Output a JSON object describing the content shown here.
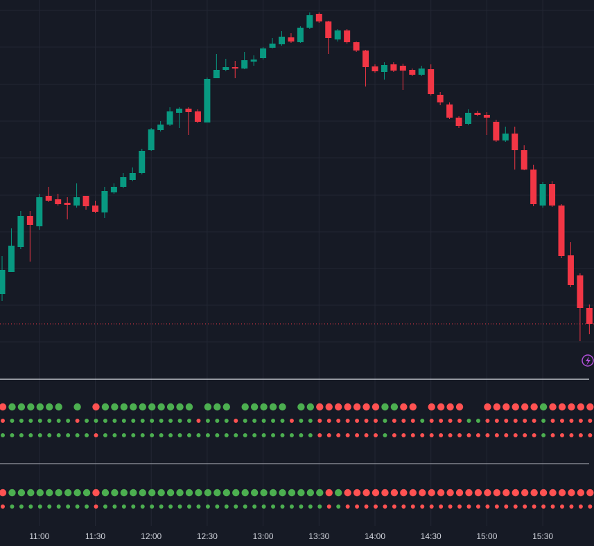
{
  "chart_data": [
    {
      "type": "candlestick",
      "categories": [
        null,
        null,
        null,
        null,
        "11:00",
        null,
        null,
        null,
        null,
        null,
        "11:30",
        null,
        null,
        null,
        null,
        null,
        "12:00",
        null,
        null,
        null,
        null,
        null,
        "12:30",
        null,
        null,
        null,
        null,
        null,
        "13:00",
        null,
        null,
        null,
        null,
        null,
        "13:30",
        null,
        null,
        null,
        null,
        null,
        "14:00",
        null,
        null,
        null,
        null,
        null,
        "14:30",
        null,
        null,
        null,
        null,
        null,
        "15:00",
        null,
        null,
        null,
        null,
        null,
        "15:30",
        null,
        null,
        null,
        null,
        null
      ],
      "open": [
        115,
        147,
        183,
        228,
        213,
        257,
        252,
        247,
        243,
        257,
        243,
        233,
        262,
        270,
        280,
        290,
        323,
        352,
        360,
        377,
        383,
        379,
        363,
        427,
        439,
        443,
        441,
        451,
        456,
        471,
        476,
        486,
        479,
        500,
        520,
        509,
        483,
        496,
        479,
        467,
        444,
        436,
        447,
        445,
        439,
        432,
        440,
        403,
        389,
        370,
        361,
        377,
        374,
        364,
        337,
        347,
        323,
        295,
        243,
        274,
        243,
        171,
        142,
        95
      ],
      "high": [
        170,
        210,
        235,
        235,
        260,
        270,
        260,
        255,
        275,
        257,
        250,
        270,
        275,
        290,
        298,
        325,
        355,
        365,
        385,
        385,
        385,
        382,
        428,
        462,
        455,
        452,
        465,
        460,
        472,
        485,
        495,
        492,
        502,
        522,
        522,
        510,
        498,
        498,
        480,
        468,
        447,
        450,
        450,
        448,
        441,
        445,
        447,
        407,
        392,
        372,
        382,
        380,
        378,
        367,
        357,
        357,
        330,
        302,
        277,
        278,
        245,
        190,
        145,
        100
      ],
      "low": [
        105,
        147,
        180,
        162,
        208,
        248,
        243,
        223,
        240,
        237,
        232,
        225,
        260,
        268,
        278,
        288,
        322,
        350,
        358,
        355,
        345,
        362,
        363,
        427,
        437,
        427,
        440,
        445,
        454,
        470,
        474,
        478,
        478,
        498,
        507,
        462,
        480,
        477,
        465,
        415,
        435,
        425,
        436,
        410,
        430,
        430,
        402,
        388,
        368,
        355,
        359,
        372,
        345,
        335,
        335,
        295,
        294,
        242,
        240,
        241,
        167,
        125,
        47,
        57
      ],
      "close": [
        150,
        185,
        228,
        215,
        255,
        250,
        245,
        244,
        255,
        242,
        234,
        264,
        270,
        284,
        290,
        322,
        353,
        360,
        379,
        383,
        378,
        364,
        426,
        439,
        443,
        441,
        453,
        454,
        470,
        477,
        487,
        480,
        500,
        518,
        509,
        485,
        496,
        479,
        467,
        443,
        437,
        446,
        438,
        438,
        432,
        441,
        404,
        392,
        370,
        358,
        377,
        374,
        370,
        337,
        347,
        323,
        295,
        245,
        274,
        243,
        170,
        128,
        95,
        72
      ],
      "up_color": "#089981",
      "down_color": "#f23645",
      "ylim": [
        0,
        540
      ],
      "yticks": [
        46,
        99,
        152,
        205,
        258,
        312,
        365,
        418,
        472,
        525
      ],
      "grid": true
    },
    {
      "type": "signal-dots",
      "up_color": "#4caf50",
      "down_color": "#ff5252",
      "panels": [
        {
          "series": [
            {
              "values": [
                -1,
                1,
                1,
                1,
                1,
                1,
                1,
                null,
                1,
                null,
                -1,
                1,
                1,
                1,
                1,
                1,
                1,
                1,
                1,
                1,
                1,
                null,
                1,
                1,
                1,
                null,
                1,
                1,
                1,
                1,
                1,
                null,
                1,
                1,
                -1,
                -1,
                -1,
                -1,
                -1,
                -1,
                -1,
                1,
                1,
                -1,
                -1,
                null,
                -1,
                -1,
                -1,
                -1,
                null,
                null,
                -1,
                -1,
                -1,
                -1,
                -1,
                -1,
                1,
                -1,
                -1,
                -1,
                -1,
                -1
              ]
            },
            {
              "values": [
                -1,
                1,
                1,
                1,
                1,
                1,
                1,
                1,
                -1,
                1,
                1,
                1,
                1,
                1,
                1,
                1,
                1,
                1,
                1,
                1,
                1,
                -1,
                1,
                1,
                1,
                -1,
                1,
                1,
                1,
                1,
                1,
                -1,
                1,
                1,
                -1,
                -1,
                -1,
                -1,
                -1,
                -1,
                -1,
                1,
                -1,
                -1,
                -1,
                1,
                -1,
                -1,
                -1,
                -1,
                1,
                1,
                -1,
                -1,
                -1,
                -1,
                -1,
                -1,
                1,
                -1,
                -1,
                -1,
                -1,
                -1
              ]
            },
            {
              "values": [
                1,
                1,
                1,
                1,
                1,
                1,
                1,
                1,
                1,
                1,
                -1,
                1,
                1,
                1,
                1,
                1,
                1,
                1,
                1,
                1,
                1,
                1,
                1,
                1,
                1,
                1,
                1,
                1,
                1,
                1,
                1,
                1,
                1,
                1,
                -1,
                -1,
                -1,
                -1,
                -1,
                -1,
                -1,
                1,
                -1,
                -1,
                -1,
                -1,
                -1,
                -1,
                -1,
                -1,
                -1,
                -1,
                -1,
                -1,
                -1,
                -1,
                -1,
                -1,
                1,
                -1,
                -1,
                -1,
                -1,
                -1
              ]
            }
          ]
        },
        {
          "series": [
            {
              "values": [
                -1,
                1,
                1,
                1,
                1,
                1,
                1,
                1,
                1,
                1,
                -1,
                1,
                1,
                1,
                1,
                1,
                1,
                1,
                1,
                1,
                1,
                1,
                1,
                1,
                1,
                1,
                1,
                1,
                1,
                1,
                1,
                1,
                1,
                1,
                1,
                -1,
                1,
                -1,
                -1,
                -1,
                -1,
                -1,
                -1,
                -1,
                -1,
                -1,
                -1,
                -1,
                -1,
                -1,
                -1,
                -1,
                -1,
                -1,
                -1,
                -1,
                -1,
                -1,
                -1,
                -1,
                -1,
                -1,
                -1,
                -1
              ]
            },
            {
              "values": [
                -1,
                1,
                1,
                1,
                1,
                1,
                1,
                1,
                1,
                1,
                -1,
                1,
                1,
                1,
                1,
                1,
                1,
                1,
                1,
                1,
                1,
                1,
                1,
                1,
                1,
                1,
                1,
                1,
                1,
                1,
                1,
                1,
                1,
                1,
                1,
                -1,
                1,
                -1,
                -1,
                -1,
                -1,
                -1,
                -1,
                -1,
                -1,
                -1,
                -1,
                -1,
                -1,
                -1,
                -1,
                -1,
                -1,
                -1,
                -1,
                -1,
                -1,
                -1,
                -1,
                -1,
                -1,
                -1,
                -1,
                -1
              ]
            }
          ]
        }
      ]
    }
  ]
}
